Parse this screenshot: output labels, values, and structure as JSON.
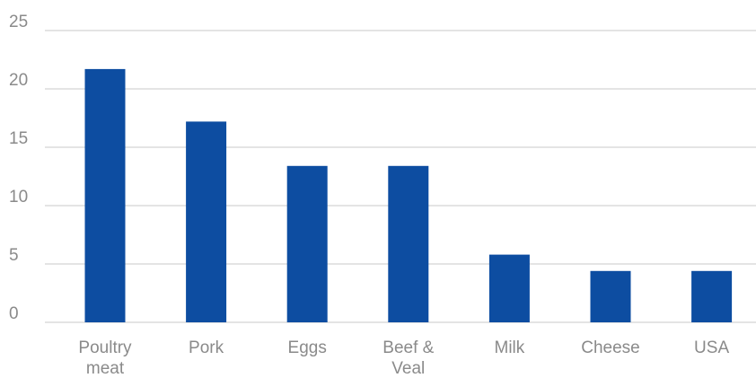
{
  "chart_data": {
    "type": "bar",
    "title": "",
    "xlabel": "",
    "ylabel": "",
    "categories": [
      "Poultry meat",
      "Pork",
      "Eggs",
      "Beef & Veal",
      "Milk",
      "Cheese",
      "USA"
    ],
    "category_label_lines": [
      [
        "Poultry",
        "meat"
      ],
      [
        "Pork"
      ],
      [
        "Eggs"
      ],
      [
        "Beef &",
        "Veal"
      ],
      [
        "Milk"
      ],
      [
        "Cheese"
      ],
      [
        "USA"
      ]
    ],
    "values": [
      21.7,
      17.2,
      13.4,
      13.4,
      5.8,
      4.4,
      4.4
    ],
    "ylim": [
      0,
      25
    ],
    "yticks": [
      0,
      5,
      10,
      15,
      20,
      25
    ],
    "ytick_labels": [
      "0",
      "5",
      "10",
      "15",
      "20",
      "25"
    ],
    "grid": true,
    "legend": "none",
    "bar_color": "#0d4da1",
    "grid_color": "#c8c8c8",
    "label_color": "#8a8a8a"
  }
}
